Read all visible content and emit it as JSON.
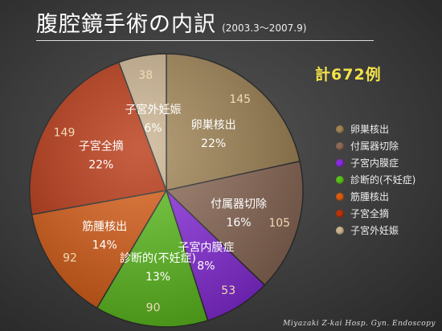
{
  "header": {
    "title": "腹腔鏡手術の内訳",
    "subtitle": "(2003.3〜2007.9)"
  },
  "total_label": "計672例",
  "credit": "Miyazaki Z-kai Hosp. Gyn. Endoscopy",
  "chart_data": {
    "type": "pie",
    "title": "腹腔鏡手術の内訳",
    "subtitle": "(2003.3〜2007.9)",
    "total": 672,
    "legend_position": "right",
    "slices": [
      {
        "label": "卵巣核出",
        "value": 145,
        "percent": "22%",
        "color": "#a08352"
      },
      {
        "label": "付属器切除",
        "value": 105,
        "percent": "16%",
        "color": "#8d6a57"
      },
      {
        "label": "子宮内膜症",
        "value": 53,
        "percent": "8%",
        "color": "#8a2be0"
      },
      {
        "label": "診断的(不妊症)",
        "value": 90,
        "percent": "13%",
        "color": "#5cbf1c"
      },
      {
        "label": "筋腫核出",
        "value": 92,
        "percent": "14%",
        "color": "#d95b12"
      },
      {
        "label": "子宮全摘",
        "value": 149,
        "percent": "22%",
        "color": "#b8320d"
      },
      {
        "label": "子宮外妊娠",
        "value": 38,
        "percent": "6%",
        "color": "#cbb38f"
      }
    ]
  }
}
